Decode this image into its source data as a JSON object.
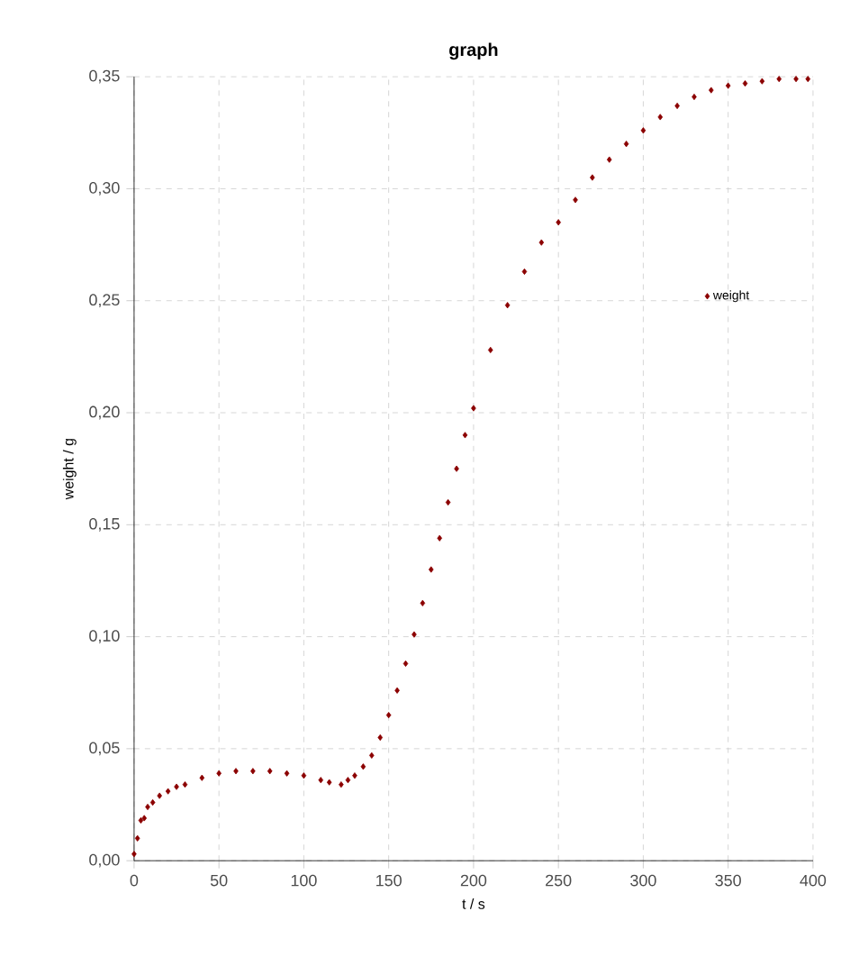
{
  "chart_data": {
    "type": "scatter",
    "title": "graph",
    "xlabel": "t / s",
    "ylabel": "weight / g",
    "xlim": [
      0,
      400
    ],
    "xticks": [
      0,
      50,
      100,
      150,
      200,
      250,
      300,
      350,
      400
    ],
    "ylim": [
      0,
      0.35
    ],
    "yticks": [
      {
        "value": 0,
        "label": "0,00"
      },
      {
        "value": 0.05,
        "label": "0,05"
      },
      {
        "value": 0.1,
        "label": "0,10"
      },
      {
        "value": 0.15,
        "label": "0,15"
      },
      {
        "value": 0.2,
        "label": "0,20"
      },
      {
        "value": 0.25,
        "label": "0,25"
      },
      {
        "value": 0.3,
        "label": "0,30"
      },
      {
        "value": 0.35,
        "label": "0,35"
      }
    ],
    "grid": true,
    "legend": "right",
    "marker": "diamond",
    "series": [
      {
        "name": "weight",
        "color": "#8b0000",
        "x": [
          0,
          2,
          4,
          6,
          8,
          11,
          15,
          20,
          25,
          30,
          40,
          50,
          60,
          70,
          80,
          90,
          100,
          110,
          115,
          122,
          126,
          130,
          135,
          140,
          145,
          150,
          155,
          160,
          165,
          170,
          175,
          180,
          185,
          190,
          195,
          200,
          210,
          220,
          230,
          240,
          250,
          260,
          270,
          280,
          290,
          300,
          310,
          320,
          330,
          340,
          350,
          360,
          370,
          380,
          390,
          397
        ],
        "values": [
          0.003,
          0.01,
          0.018,
          0.019,
          0.024,
          0.026,
          0.029,
          0.031,
          0.033,
          0.034,
          0.037,
          0.039,
          0.04,
          0.04,
          0.04,
          0.039,
          0.038,
          0.036,
          0.035,
          0.034,
          0.036,
          0.038,
          0.042,
          0.047,
          0.055,
          0.065,
          0.076,
          0.088,
          0.101,
          0.115,
          0.13,
          0.144,
          0.16,
          0.175,
          0.19,
          0.202,
          0.228,
          0.248,
          0.263,
          0.276,
          0.285,
          0.295,
          0.305,
          0.313,
          0.32,
          0.326,
          0.332,
          0.337,
          0.341,
          0.344,
          0.346,
          0.347,
          0.348,
          0.349,
          0.349,
          0.349
        ]
      }
    ]
  }
}
